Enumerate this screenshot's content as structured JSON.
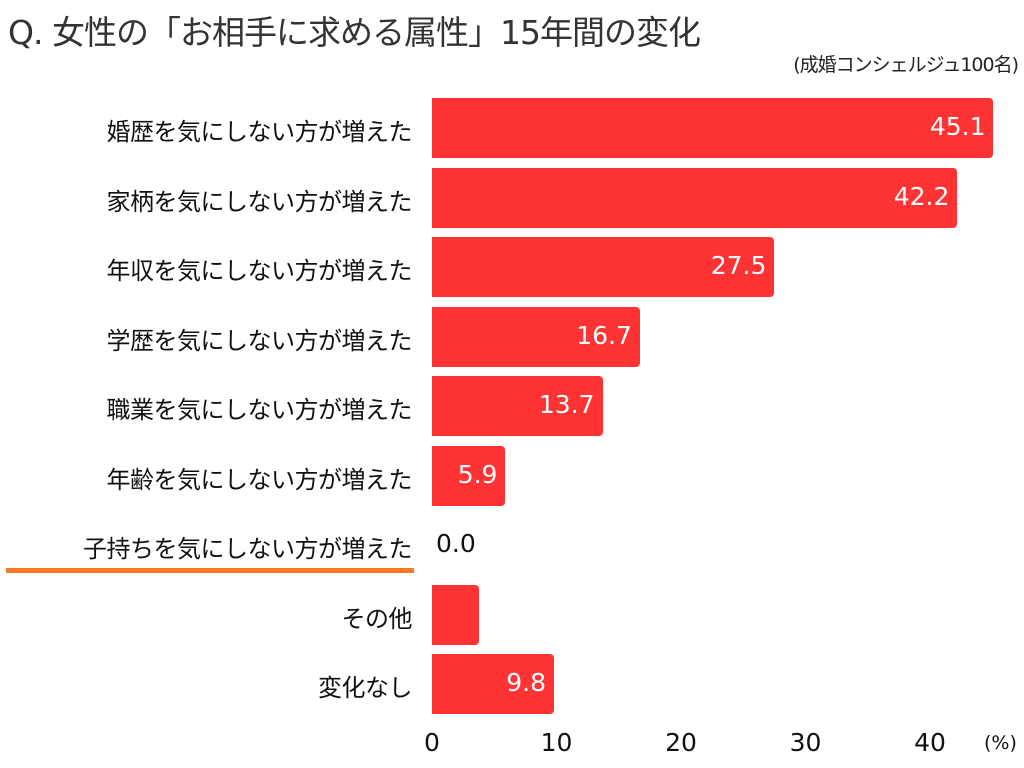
{
  "title": "Q. 女性の「お相手に求める属性」15年間の変化",
  "subtitle": "(成婚コンシェルジュ100名)",
  "axis": {
    "ticks": [
      "0",
      "10",
      "20",
      "30",
      "40"
    ],
    "unit": "(%)"
  },
  "colors": {
    "bar": "#ff3333",
    "highlight_underline": "#ff7722"
  },
  "chart_data": {
    "type": "bar",
    "orientation": "horizontal",
    "title": "Q. 女性の「お相手に求める属性」15年間の変化",
    "subtitle": "(成婚コンシェルジュ100名)",
    "categories": [
      "婚歴を気にしない方が増えた",
      "家柄を気にしない方が増えた",
      "年収を気にしない方が増えた",
      "学歴を気にしない方が増えた",
      "職業を気にしない方が増えた",
      "年齢を気にしない方が増えた",
      "子持ちを気にしない方が増えた",
      "その他",
      "変化なし"
    ],
    "values": [
      45.1,
      42.2,
      27.5,
      16.7,
      13.7,
      5.9,
      0.0,
      3.8,
      9.8
    ],
    "value_labels": [
      "45.1",
      "42.2",
      "27.5",
      "16.7",
      "13.7",
      "5.9",
      "0.0",
      "",
      "9.8"
    ],
    "xlabel": "(%)",
    "xlim": [
      0,
      45
    ],
    "xticks": [
      0,
      10,
      20,
      30,
      40
    ],
    "grid": false,
    "highlighted_category": "子持ちを気にしない方が増えた"
  }
}
